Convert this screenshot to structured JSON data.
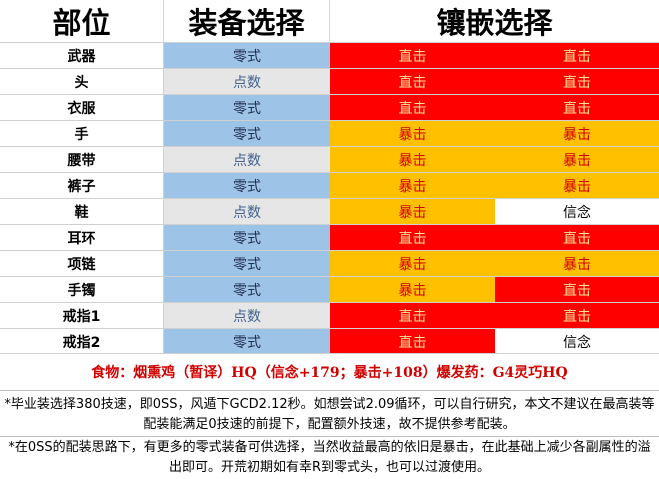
{
  "header": {
    "part": "部位",
    "gear": "装备选择",
    "meld": "镶嵌选择"
  },
  "colors": {
    "raid_blue": "#9dc3e6",
    "tome_grey": "#e7e6e6",
    "dh_red": "#ff0000",
    "crit_orange": "#ffc000",
    "det_white": "#ffffff",
    "dh_text": "#ffe699",
    "crit_text": "#d00000"
  },
  "rows": [
    {
      "slot": "武器",
      "gear": "零式",
      "meld1": "直击",
      "meld2": "直击"
    },
    {
      "slot": "头",
      "gear": "点数",
      "meld1": "直击",
      "meld2": "直击"
    },
    {
      "slot": "衣服",
      "gear": "零式",
      "meld1": "直击",
      "meld2": "直击"
    },
    {
      "slot": "手",
      "gear": "零式",
      "meld1": "暴击",
      "meld2": "暴击"
    },
    {
      "slot": "腰带",
      "gear": "点数",
      "meld1": "暴击",
      "meld2": "暴击"
    },
    {
      "slot": "裤子",
      "gear": "零式",
      "meld1": "暴击",
      "meld2": "暴击"
    },
    {
      "slot": "鞋",
      "gear": "点数",
      "meld1": "暴击",
      "meld2": "信念"
    },
    {
      "slot": "耳环",
      "gear": "零式",
      "meld1": "直击",
      "meld2": "直击"
    },
    {
      "slot": "项链",
      "gear": "零式",
      "meld1": "暴击",
      "meld2": "暴击"
    },
    {
      "slot": "手镯",
      "gear": "零式",
      "meld1": "暴击",
      "meld2": "直击"
    },
    {
      "slot": "戒指1",
      "gear": "点数",
      "meld1": "直击",
      "meld2": "直击"
    },
    {
      "slot": "戒指2",
      "gear": "零式",
      "meld1": "直击",
      "meld2": "信念"
    }
  ],
  "food": "食物：烟熏鸡（暂译）HQ（信念+179；暴击+108）爆发药：G4灵巧HQ",
  "notes": [
    "*毕业装选择380技速，即0SS，风遁下GCD2.12秒。如想尝试2.09循环，可以自行研究，本文不建议在最高装等配装能满足0技速的前提下，配置额外技速，故不提供参考配装。",
    "*在0SS的配装思路下，有更多的零式装备可供选择，当然收益最高的依旧是暴击，在此基础上减少各副属性的溢出即可。开荒初期如有幸R到零式头，也可以过渡使用。"
  ]
}
